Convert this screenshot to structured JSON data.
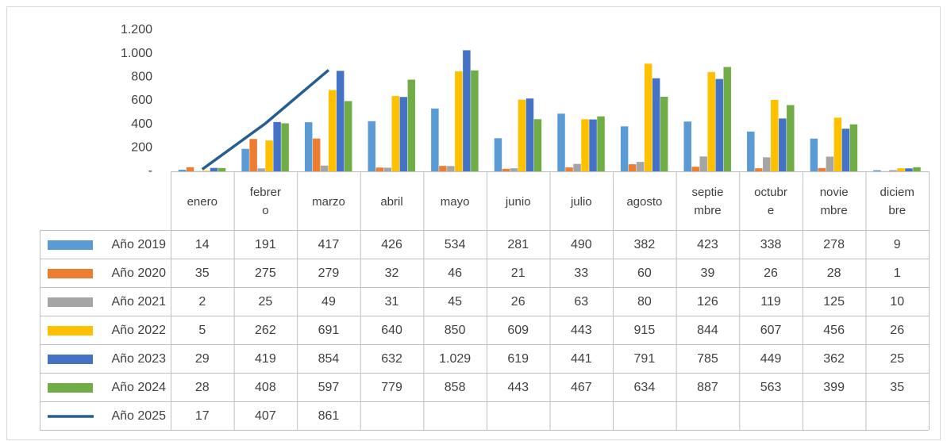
{
  "chart_data": {
    "type": "bar",
    "categories": [
      "enero",
      "febrero",
      "marzo",
      "abril",
      "mayo",
      "junio",
      "julio",
      "agosto",
      "septiembre",
      "octubre",
      "noviembre",
      "diciembre"
    ],
    "series": [
      {
        "name": "Año 2019",
        "color": "#5b9bd5",
        "values": [
          14,
          191,
          417,
          426,
          534,
          281,
          490,
          382,
          423,
          338,
          278,
          9
        ]
      },
      {
        "name": "Año 2020",
        "color": "#ed7d31",
        "values": [
          35,
          275,
          279,
          32,
          46,
          21,
          33,
          60,
          39,
          26,
          28,
          1
        ]
      },
      {
        "name": "Año 2021",
        "color": "#a5a5a5",
        "values": [
          2,
          25,
          49,
          31,
          45,
          26,
          63,
          80,
          126,
          119,
          125,
          10
        ]
      },
      {
        "name": "Año 2022",
        "color": "#ffc000",
        "values": [
          5,
          262,
          691,
          640,
          850,
          609,
          443,
          915,
          844,
          607,
          456,
          26
        ]
      },
      {
        "name": "Año 2023",
        "color": "#4472c4",
        "values": [
          29,
          419,
          854,
          632,
          1029,
          619,
          441,
          791,
          785,
          449,
          362,
          25
        ],
        "value_labels": [
          "29",
          "419",
          "854",
          "632",
          "1.029",
          "619",
          "441",
          "791",
          "785",
          "449",
          "362",
          "25"
        ]
      },
      {
        "name": "Año 2024",
        "color": "#70ad47",
        "values": [
          28,
          408,
          597,
          779,
          858,
          443,
          467,
          634,
          887,
          563,
          399,
          35
        ]
      },
      {
        "name": "Año 2025",
        "color": "#255e91",
        "type": "line",
        "values": [
          17,
          407,
          861,
          null,
          null,
          null,
          null,
          null,
          null,
          null,
          null,
          null
        ]
      }
    ],
    "ylim": [
      0,
      1200
    ],
    "yticks": [
      {
        "value": 0,
        "label": "-"
      },
      200,
      400,
      600,
      800,
      {
        "value": 1000,
        "label": "1.000"
      },
      {
        "value": 1200,
        "label": "1.200"
      }
    ],
    "grid": false
  }
}
